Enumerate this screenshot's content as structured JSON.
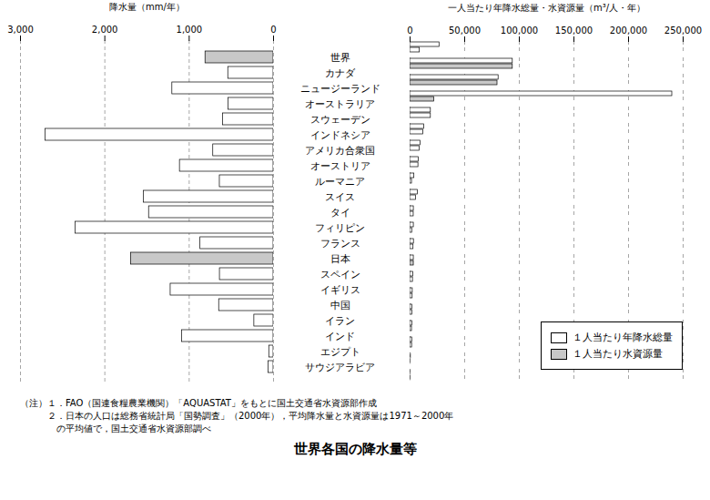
{
  "chart_data": [
    {
      "type": "bar",
      "orientation": "horizontal",
      "title": "世界各国の降水量等",
      "x_label": "降水量（mm/年）",
      "categories": [
        "世界",
        "カナダ",
        "ニュージーランド",
        "オーストラリア",
        "スウェーデン",
        "インドネシア",
        "アメリカ合衆国",
        "オーストリア",
        "ルーマニア",
        "スイス",
        "タイ",
        "フィリピン",
        "フランス",
        "日本",
        "スペイン",
        "イギリス",
        "中国",
        "イラン",
        "インド",
        "エジプト",
        "サウジアラビア"
      ],
      "values": [
        807,
        537,
        1200,
        534,
        600,
        2702,
        715,
        1110,
        637,
        1537,
        1476,
        2348,
        867,
        1690,
        636,
        1220,
        645,
        228,
        1083,
        51,
        59
      ],
      "colors": [
        "#c8c8c8",
        "#ffffff",
        "#ffffff",
        "#ffffff",
        "#ffffff",
        "#ffffff",
        "#ffffff",
        "#ffffff",
        "#ffffff",
        "#ffffff",
        "#ffffff",
        "#ffffff",
        "#ffffff",
        "#c8c8c8",
        "#ffffff",
        "#ffffff",
        "#ffffff",
        "#ffffff",
        "#ffffff",
        "#ffffff",
        "#ffffff"
      ],
      "xlim": [
        3000,
        0
      ],
      "xticks": [
        {
          "value": 3000,
          "label": "3,000"
        },
        {
          "value": 2000,
          "label": "2,000"
        },
        {
          "value": 1000,
          "label": "1,000"
        },
        0
      ],
      "grid": true,
      "annotations": [
        "（注）１．FAO（国連食糧農業機関）「AQUASTAT」をもとに国土交通省水資源部作成",
        "　　　２．日本の人口は総務省統計局「国勢調査」（2000年），平均降水量と水資源量は1971～2000年",
        "　　　　の平均値で，国土交通省水資源部調べ"
      ]
    },
    {
      "type": "bar",
      "orientation": "horizontal",
      "x_label": "一人当たり年降水総量・水資源量（m³/人・年）",
      "categories": [
        "世界",
        "カナダ",
        "ニュージーランド",
        "オーストラリア",
        "スウェーデン",
        "インドネシア",
        "アメリカ合衆国",
        "オーストリア",
        "ルーマニア",
        "スイス",
        "タイ",
        "フィリピン",
        "フランス",
        "日本",
        "スペイン",
        "イギリス",
        "中国",
        "イラン",
        "インド",
        "エジプト",
        "サウジアラビア"
      ],
      "series": [
        {
          "name": "１人当たり年降水総量",
          "color": "#ffffff",
          "values": [
            26900,
            94000,
            81000,
            240000,
            19000,
            12800,
            9600,
            7800,
            3900,
            7200,
            3400,
            3400,
            3500,
            3380,
            2800,
            2400,
            2200,
            2000,
            1900,
            700,
            90
          ]
        },
        {
          "name": "１人当たり水資源量",
          "color": "#c8c8c8",
          "colors": [
            "#ffffff",
            "#c8c8c8",
            "#c8c8c8",
            "#c8c8c8",
            "#ffffff",
            "#ffffff",
            "#ffffff",
            "#ffffff",
            "#ffffff",
            "#ffffff",
            "#ffffff",
            "#ffffff",
            "#ffffff",
            "#c8c8c8",
            "#ffffff",
            "#ffffff",
            "#ffffff",
            "#ffffff",
            "#ffffff",
            "#ffffff",
            "#ffffff"
          ],
          "values": [
            8900,
            94000,
            80000,
            22000,
            19000,
            12000,
            8700,
            7600,
            1700,
            5400,
            3300,
            1900,
            3100,
            3380,
            2600,
            2300,
            2100,
            1700,
            1800,
            22,
            89
          ]
        }
      ],
      "xlim": [
        0,
        250000
      ],
      "xticks": [
        0,
        {
          "value": 50000,
          "label": "50,000"
        },
        {
          "value": 100000,
          "label": "100,000"
        },
        {
          "value": 150000,
          "label": "150,000"
        },
        {
          "value": 200000,
          "label": "200,000"
        },
        {
          "value": 250000,
          "label": "250,000"
        }
      ],
      "grid": true,
      "legend": "lower right",
      "tick_labels": "x"
    }
  ]
}
